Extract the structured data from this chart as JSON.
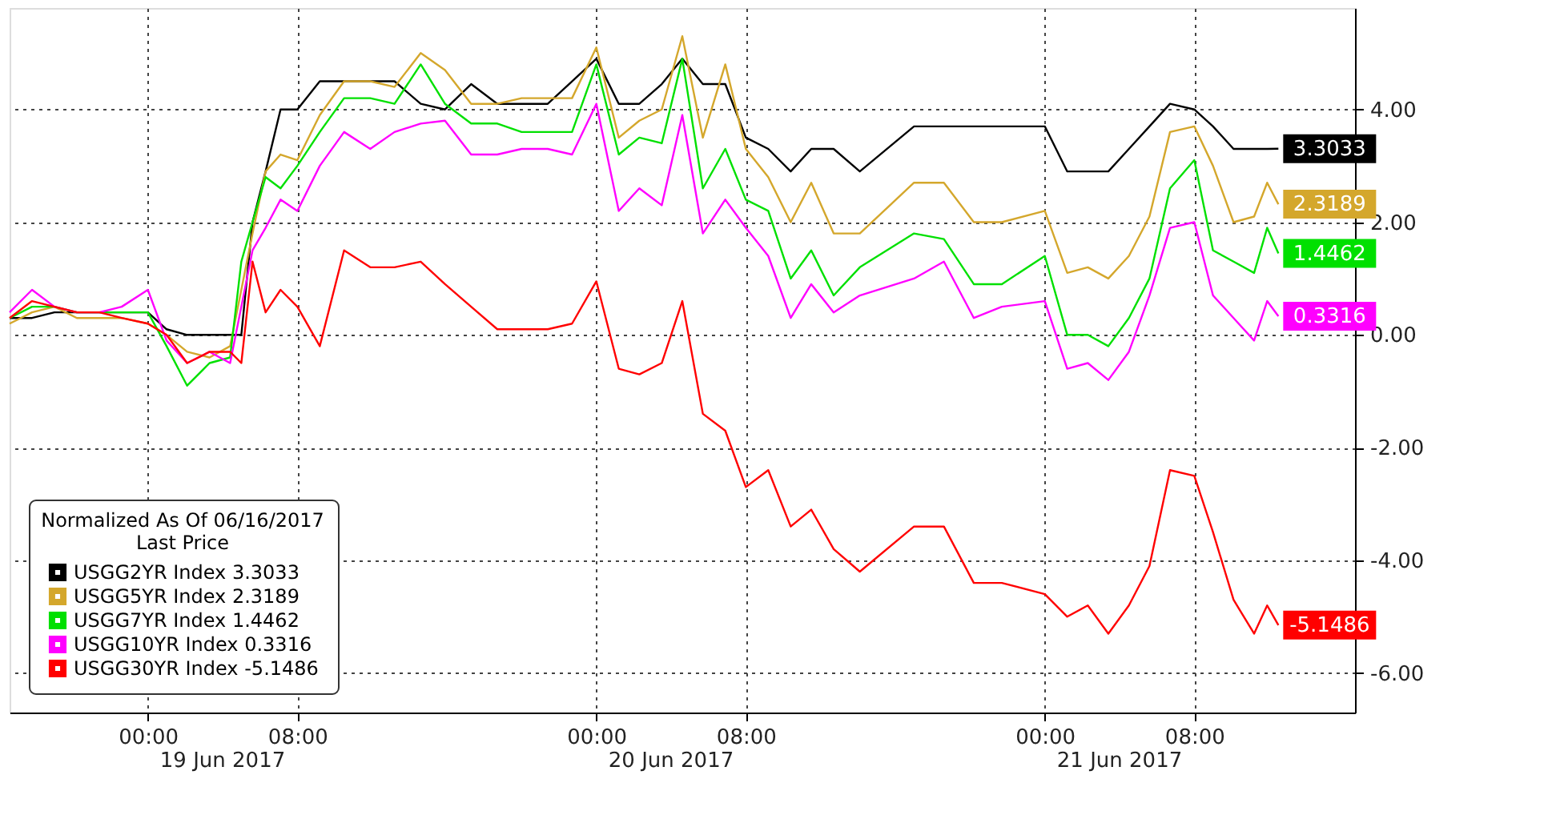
{
  "chart_data": {
    "type": "line",
    "x": [
      "2017-06-18T16:36",
      "2017-06-18T17:48",
      "2017-06-18T19:00",
      "2017-06-18T20:12",
      "2017-06-18T21:24",
      "2017-06-18T22:36",
      "2017-06-19T00:00",
      "2017-06-19T01:00",
      "2017-06-19T02:06",
      "2017-06-19T03:18",
      "2017-06-19T04:24",
      "2017-06-19T05:00",
      "2017-06-19T05:36",
      "2017-06-19T06:18",
      "2017-06-19T07:06",
      "2017-06-19T08:00",
      "2017-06-19T09:12",
      "2017-06-19T10:30",
      "2017-06-19T11:54",
      "2017-06-19T13:12",
      "2017-06-19T14:36",
      "2017-06-19T15:54",
      "2017-06-19T17:18",
      "2017-06-19T18:42",
      "2017-06-19T20:00",
      "2017-06-19T21:24",
      "2017-06-19T22:42",
      "2017-06-20T00:00",
      "2017-06-20T01:12",
      "2017-06-20T02:18",
      "2017-06-20T03:30",
      "2017-06-20T04:36",
      "2017-06-20T05:42",
      "2017-06-20T06:54",
      "2017-06-20T08:00",
      "2017-06-20T09:12",
      "2017-06-20T10:24",
      "2017-06-20T11:30",
      "2017-06-20T12:42",
      "2017-06-20T14:06",
      "2017-06-20T17:00",
      "2017-06-20T18:36",
      "2017-06-20T20:12",
      "2017-06-20T21:42",
      "2017-06-21T00:00",
      "2017-06-21T01:12",
      "2017-06-21T02:18",
      "2017-06-21T03:24",
      "2017-06-21T04:30",
      "2017-06-21T05:36",
      "2017-06-21T06:42",
      "2017-06-21T08:00",
      "2017-06-21T09:00",
      "2017-06-21T10:06",
      "2017-06-21T11:12",
      "2017-06-21T11:54",
      "2017-06-21T12:30"
    ],
    "series": [
      {
        "name": "USGG2YR Index   3.3033",
        "color": "#000000",
        "values": [
          0.3,
          0.3,
          0.4,
          0.4,
          0.4,
          0.4,
          0.4,
          0.1,
          0.0,
          0.0,
          0.0,
          0.0,
          2.0,
          2.9,
          4.0,
          4.0,
          4.5,
          4.5,
          4.5,
          4.5,
          4.1,
          4.0,
          4.45,
          4.1,
          4.1,
          4.1,
          4.5,
          4.9,
          4.1,
          4.1,
          4.45,
          4.9,
          4.45,
          4.45,
          3.5,
          3.3,
          2.9,
          3.3,
          3.3,
          2.9,
          3.7,
          3.7,
          3.7,
          3.7,
          3.7,
          2.9,
          2.9,
          2.9,
          3.3,
          3.7,
          4.1,
          4.0,
          3.7,
          3.3,
          3.3,
          3.3,
          3.3033
        ],
        "value_labels": [
          null,
          null,
          null,
          null,
          null,
          null,
          null,
          null,
          null,
          null,
          null,
          null,
          null,
          null,
          null,
          null,
          null,
          null,
          null,
          null,
          null,
          null,
          null,
          null,
          null,
          null,
          null,
          null,
          null,
          null,
          null,
          null,
          null,
          null,
          null,
          null,
          null,
          null,
          null,
          null,
          null,
          null,
          null,
          null,
          null,
          null,
          null,
          null,
          null,
          null,
          null,
          null,
          null,
          null,
          null,
          null,
          "3.3033"
        ]
      },
      {
        "name": "USGG5YR Index   2.3189",
        "color": "#d4a72c",
        "values": [
          0.2,
          0.4,
          0.5,
          0.3,
          0.3,
          0.3,
          0.2,
          0.0,
          -0.3,
          -0.4,
          -0.2,
          0.8,
          1.8,
          2.9,
          3.2,
          3.1,
          3.9,
          4.5,
          4.5,
          4.4,
          5.0,
          4.7,
          4.1,
          4.1,
          4.2,
          4.2,
          4.2,
          5.1,
          3.5,
          3.8,
          4.0,
          5.3,
          3.5,
          4.8,
          3.3,
          2.8,
          2.0,
          2.7,
          1.8,
          1.8,
          2.7,
          2.7,
          2.0,
          2.0,
          2.2,
          1.1,
          1.2,
          1.0,
          1.4,
          2.1,
          3.6,
          3.7,
          3.0,
          2.0,
          2.1,
          2.7,
          2.3189
        ],
        "value_labels": [
          null,
          null,
          null,
          null,
          null,
          null,
          null,
          null,
          null,
          null,
          null,
          null,
          null,
          null,
          null,
          null,
          null,
          null,
          null,
          null,
          null,
          null,
          null,
          null,
          null,
          null,
          null,
          null,
          null,
          null,
          null,
          null,
          null,
          null,
          null,
          null,
          null,
          null,
          null,
          null,
          null,
          null,
          null,
          null,
          null,
          null,
          null,
          null,
          null,
          null,
          null,
          null,
          null,
          null,
          null,
          null,
          "2.3189"
        ]
      },
      {
        "name": "USGG7YR Index   1.4462",
        "color": "#00e000",
        "values": [
          0.3,
          0.5,
          0.5,
          0.4,
          0.4,
          0.4,
          0.4,
          -0.2,
          -0.9,
          -0.5,
          -0.4,
          1.3,
          2.0,
          2.8,
          2.6,
          3.0,
          3.6,
          4.2,
          4.2,
          4.1,
          4.8,
          4.1,
          3.75,
          3.75,
          3.6,
          3.6,
          3.6,
          4.8,
          3.2,
          3.5,
          3.4,
          4.9,
          2.6,
          3.3,
          2.4,
          2.2,
          1.0,
          1.5,
          0.7,
          1.2,
          1.8,
          1.7,
          0.9,
          0.9,
          1.4,
          0.0,
          0.0,
          -0.2,
          0.3,
          1.0,
          2.6,
          3.1,
          1.5,
          1.3,
          1.1,
          1.9,
          1.4462
        ],
        "value_labels": [
          null,
          null,
          null,
          null,
          null,
          null,
          null,
          null,
          null,
          null,
          null,
          null,
          null,
          null,
          null,
          null,
          null,
          null,
          null,
          null,
          null,
          null,
          null,
          null,
          null,
          null,
          null,
          null,
          null,
          null,
          null,
          null,
          null,
          null,
          null,
          null,
          null,
          null,
          null,
          null,
          null,
          null,
          null,
          null,
          null,
          null,
          null,
          null,
          null,
          null,
          null,
          null,
          null,
          null,
          null,
          null,
          "1.4462"
        ]
      },
      {
        "name": "USGG10YR Index 0.3316",
        "color": "#ff00ff",
        "values": [
          0.4,
          0.8,
          0.5,
          0.4,
          0.4,
          0.5,
          0.8,
          -0.1,
          -0.5,
          -0.3,
          -0.5,
          0.5,
          1.5,
          1.9,
          2.4,
          2.2,
          3.0,
          3.6,
          3.3,
          3.6,
          3.75,
          3.8,
          3.2,
          3.2,
          3.3,
          3.3,
          3.2,
          4.1,
          2.2,
          2.6,
          2.3,
          3.9,
          1.8,
          2.4,
          1.9,
          1.4,
          0.3,
          0.9,
          0.4,
          0.7,
          1.0,
          1.3,
          0.3,
          0.5,
          0.6,
          -0.6,
          -0.5,
          -0.8,
          -0.3,
          0.7,
          1.9,
          2.0,
          0.7,
          0.3,
          -0.1,
          0.6,
          0.3316
        ],
        "value_labels": [
          null,
          null,
          null,
          null,
          null,
          null,
          null,
          null,
          null,
          null,
          null,
          null,
          null,
          null,
          null,
          null,
          null,
          null,
          null,
          null,
          null,
          null,
          null,
          null,
          null,
          null,
          null,
          null,
          null,
          null,
          null,
          null,
          null,
          null,
          null,
          null,
          null,
          null,
          null,
          null,
          null,
          null,
          null,
          null,
          null,
          null,
          null,
          null,
          null,
          null,
          null,
          null,
          null,
          null,
          null,
          null,
          "0.3316"
        ]
      },
      {
        "name": "USGG30YR Index -5.1486",
        "color": "#ff0000",
        "values": [
          0.3,
          0.6,
          0.5,
          0.4,
          0.4,
          0.3,
          0.2,
          0.0,
          -0.5,
          -0.3,
          -0.3,
          -0.5,
          1.3,
          0.4,
          0.8,
          0.5,
          -0.2,
          1.5,
          1.2,
          1.2,
          1.3,
          0.9,
          0.5,
          0.1,
          0.1,
          0.1,
          0.2,
          0.95,
          -0.6,
          -0.7,
          -0.5,
          0.6,
          -1.4,
          -1.7,
          -2.7,
          -2.4,
          -3.4,
          -3.1,
          -3.8,
          -4.2,
          -3.4,
          -3.4,
          -4.4,
          -4.4,
          -4.6,
          -5.0,
          -4.8,
          -5.3,
          -4.8,
          -4.1,
          -2.4,
          -2.5,
          -3.5,
          -4.7,
          -5.3,
          -4.8,
          -5.1486
        ],
        "value_labels": [
          null,
          null,
          null,
          null,
          null,
          null,
          null,
          null,
          null,
          null,
          null,
          null,
          null,
          null,
          null,
          null,
          null,
          null,
          null,
          null,
          null,
          null,
          null,
          null,
          null,
          null,
          null,
          null,
          null,
          null,
          null,
          null,
          null,
          null,
          null,
          null,
          null,
          null,
          null,
          null,
          null,
          null,
          null,
          null,
          null,
          null,
          null,
          null,
          null,
          null,
          null,
          null,
          null,
          null,
          null,
          null,
          "-5.1486"
        ]
      }
    ],
    "xlim": [
      "2017-06-18T16:36",
      "2017-06-21T16:36"
    ],
    "xticks": [
      {
        "value": "2017-06-19T00:00",
        "label": "00:00"
      },
      {
        "value": "2017-06-19T08:00",
        "label": "08:00"
      },
      {
        "value": "2017-06-20T00:00",
        "label": "00:00"
      },
      {
        "value": "2017-06-20T08:00",
        "label": "08:00"
      },
      {
        "value": "2017-06-21T00:00",
        "label": "00:00"
      },
      {
        "value": "2017-06-21T08:00",
        "label": "08:00"
      }
    ],
    "ylim": [
      -6.7,
      5.8
    ],
    "yticks": [
      {
        "value": -6,
        "label": "-6.00"
      },
      {
        "value": -4,
        "label": "-4.00"
      },
      {
        "value": -2,
        "label": "-2.00"
      },
      {
        "value": 0,
        "label": "0.00"
      },
      {
        "value": 2,
        "label": "2.00"
      },
      {
        "value": 4,
        "label": "4.00"
      }
    ],
    "legend_title": "Normalized As Of 06/16/2017\nLast Price",
    "legend": "bottom left",
    "grid": true,
    "annotations": [
      "19 Jun 2017",
      "20 Jun 2017",
      "21 Jun 2017"
    ]
  }
}
